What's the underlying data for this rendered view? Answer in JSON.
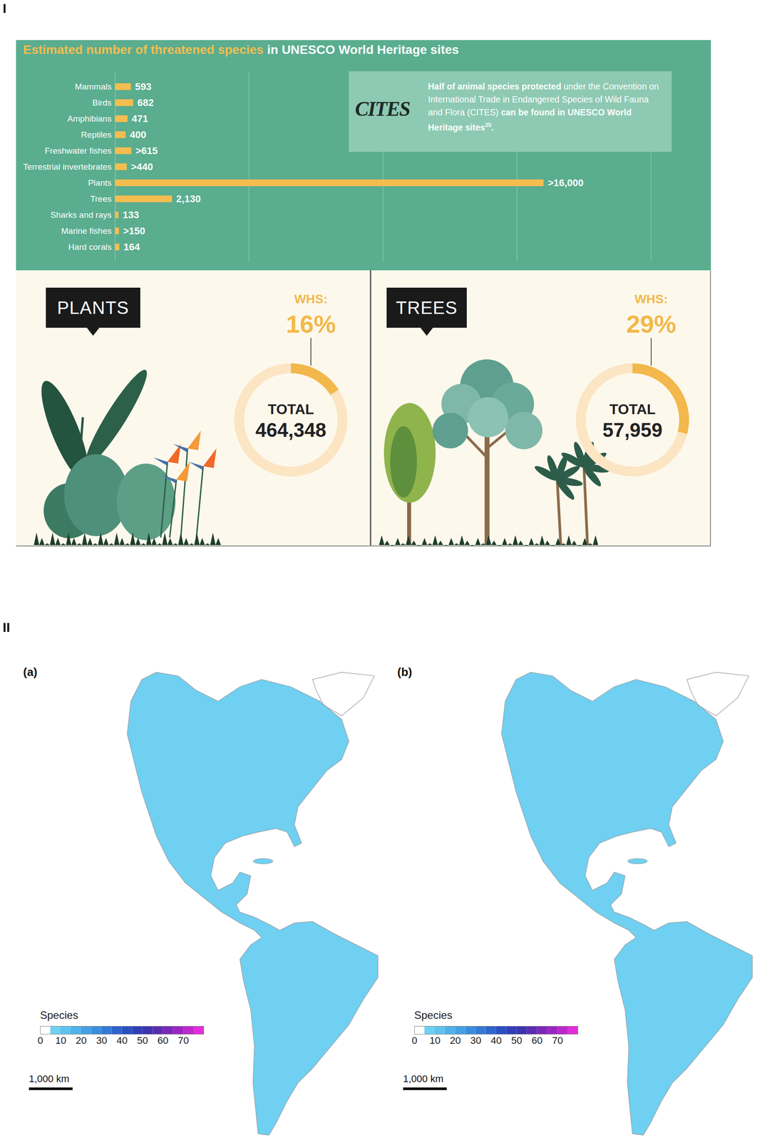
{
  "sections": [
    "I",
    "II"
  ],
  "chart_data": [
    {
      "type": "bar",
      "orientation": "horizontal",
      "title": "Estimated number of threatened species in UNESCO World Heritage sites",
      "title_highlight": "Estimated number of threatened species",
      "categories": [
        "Mammals",
        "Birds",
        "Amphibians",
        "Reptiles",
        "Freshwater fishes",
        "Terrestrial invertebrates",
        "Plants",
        "Trees",
        "Sharks and rays",
        "Marine fishes",
        "Hard corals"
      ],
      "values": [
        593,
        682,
        471,
        400,
        615,
        440,
        16000,
        2130,
        133,
        150,
        164
      ],
      "value_labels": [
        "593",
        "682",
        "471",
        "400",
        ">615",
        ">440",
        ">16,000",
        "2,130",
        "133",
        ">150",
        "164"
      ],
      "color": "#f5bd4f",
      "xlim": [
        0,
        20000
      ],
      "xticks": [
        0,
        5000,
        10000,
        15000,
        20000
      ],
      "grid": true,
      "tick_labels": "y",
      "data_labels": true,
      "annotation": {
        "logo": "CITES",
        "parts": [
          {
            "text": "Half of animal species protected",
            "weight": "bold"
          },
          {
            "text": " under the Convention on International Trade in Endangered Species of Wild Fauna and Flora (CITES) ",
            "weight": "normal"
          },
          {
            "text": "can be found in UNESCO World Heritage sites",
            "weight": "bold"
          },
          {
            "text": "25",
            "weight": "sup"
          },
          {
            "text": ".",
            "weight": "bold"
          }
        ]
      }
    },
    {
      "type": "donut",
      "title": "PLANTS",
      "label": "WHS:",
      "values": [
        16
      ],
      "value_labels": [
        "16%"
      ],
      "ylim": [
        0,
        100
      ],
      "colors": [
        "#f2b84b"
      ],
      "total": {
        "label": "TOTAL",
        "value": 464348,
        "value_label": "464,348"
      }
    },
    {
      "type": "donut",
      "title": "TREES",
      "label": "WHS:",
      "values": [
        29
      ],
      "value_labels": [
        "29%"
      ],
      "ylim": [
        0,
        100
      ],
      "colors": [
        "#f2b84b"
      ],
      "total": {
        "label": "TOTAL",
        "value": 57959,
        "value_label": "57,959"
      }
    },
    {
      "type": "map",
      "panel": "(a)",
      "legend_title": "Species",
      "scale_bar": "1,000 km",
      "colorbar": {
        "range": [
          0,
          80
        ],
        "ticks": [
          0,
          10,
          20,
          30,
          40,
          50,
          60,
          70
        ],
        "colors": [
          "#ffffff",
          "#6fd0f2",
          "#5ec3ee",
          "#4fb2ea",
          "#44a0e4",
          "#3b8ddd",
          "#3479d5",
          "#2e64cc",
          "#2a50c3",
          "#2f3fb8",
          "#3d33b0",
          "#5a2cb0",
          "#7a28b8",
          "#9a26c2",
          "#bb28cc",
          "#e02fd8"
        ]
      }
    },
    {
      "type": "map",
      "panel": "(b)",
      "legend_title": "Species",
      "scale_bar": "1,000 km",
      "colorbar": {
        "range": [
          0,
          80
        ],
        "ticks": [
          0,
          10,
          20,
          30,
          40,
          50,
          60,
          70
        ],
        "colors": [
          "#ffffff",
          "#6fd0f2",
          "#5ec3ee",
          "#4fb2ea",
          "#44a0e4",
          "#3b8ddd",
          "#3479d5",
          "#2e64cc",
          "#2a50c3",
          "#2f3fb8",
          "#3d33b0",
          "#5a2cb0",
          "#7a28b8",
          "#9a26c2",
          "#bb28cc",
          "#e02fd8"
        ]
      }
    }
  ]
}
